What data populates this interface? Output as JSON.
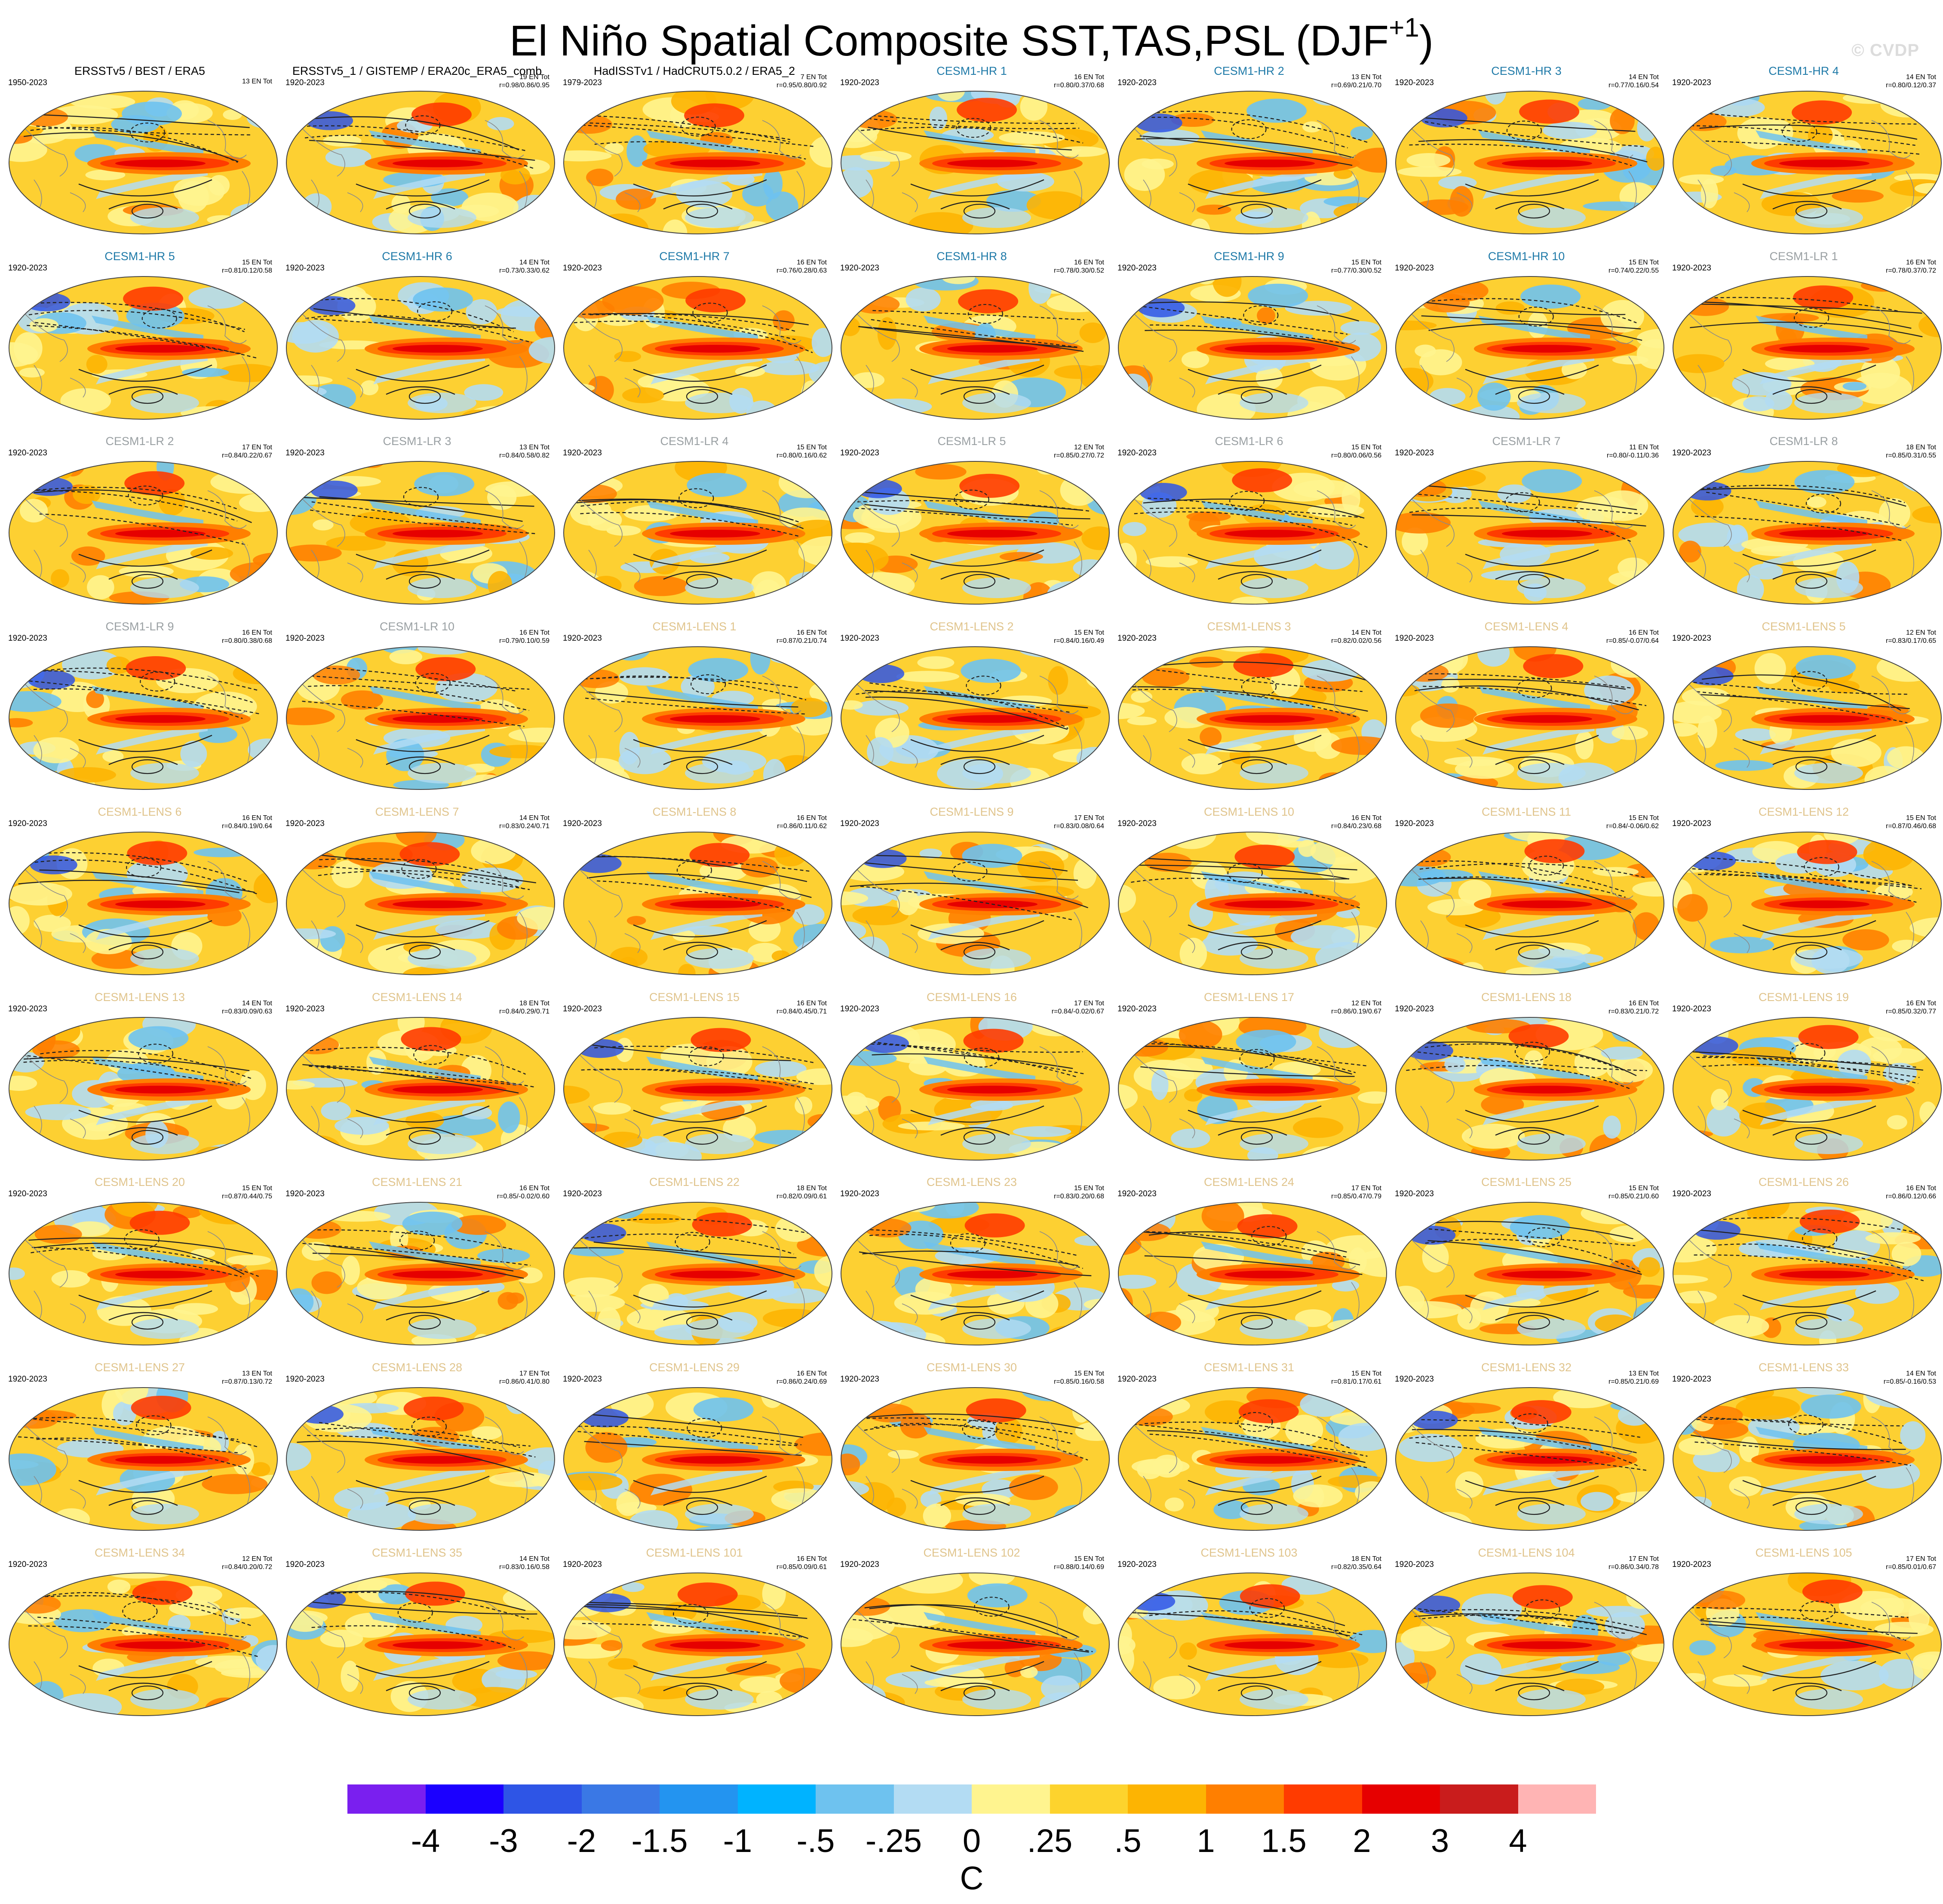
{
  "title": "El Niño Spatial Composite SST,TAS,PSL (DJF",
  "title_superscript": "+1",
  "title_suffix": ")",
  "watermark": "© CVDP",
  "chart_data": {
    "type": "heatmap",
    "title": "El Niño Spatial Composite SST,TAS,PSL (DJF+1)",
    "units": "C",
    "colorbar": {
      "ticks": [
        "-4",
        "-3",
        "-2",
        "-1.5",
        "-1",
        "-.5",
        "-.25",
        "0",
        ".25",
        ".5",
        "1",
        "1.5",
        "2",
        "3",
        "4"
      ],
      "colors": [
        "#7a1fef",
        "#1b00ff",
        "#2e55e6",
        "#3a78e5",
        "#2394f0",
        "#00b3ff",
        "#6ec2ef",
        "#b3dcf3",
        "#fff48f",
        "#fdd32d",
        "#fdb402",
        "#ff7f00",
        "#ff3b00",
        "#e60000",
        "#c91c1c",
        "#ffb4b4"
      ]
    },
    "panels": [
      {
        "title": "ERSSTv5 / BEST / ERA5",
        "years": "1950-2023",
        "en": "13 EN Tot",
        "stat": "",
        "group": "obs"
      },
      {
        "title": "ERSSTv5_1 / GISTEMP / ERA20c_ERA5_comb",
        "years": "1920-2023",
        "en": "19 EN Tot",
        "stat": "r=0.98/0.86/0.95",
        "group": "obs"
      },
      {
        "title": "HadISSTv1 / HadCRUT5.0.2 / ERA5_2",
        "years": "1979-2023",
        "en": "7 EN Tot",
        "stat": "r=0.95/0.80/0.92",
        "group": "obs"
      },
      {
        "title": "CESM1-HR 1",
        "years": "1920-2023",
        "en": "16 EN Tot",
        "stat": "r=0.80/0.37/0.68",
        "group": "hr"
      },
      {
        "title": "CESM1-HR 2",
        "years": "1920-2023",
        "en": "13 EN Tot",
        "stat": "r=0.69/0.21/0.70",
        "group": "hr"
      },
      {
        "title": "CESM1-HR 3",
        "years": "1920-2023",
        "en": "14 EN Tot",
        "stat": "r=0.77/0.16/0.54",
        "group": "hr"
      },
      {
        "title": "CESM1-HR 4",
        "years": "1920-2023",
        "en": "14 EN Tot",
        "stat": "r=0.80/0.12/0.37",
        "group": "hr"
      },
      {
        "title": "CESM1-HR 5",
        "years": "1920-2023",
        "en": "15 EN Tot",
        "stat": "r=0.81/0.12/0.58",
        "group": "hr"
      },
      {
        "title": "CESM1-HR 6",
        "years": "1920-2023",
        "en": "14 EN Tot",
        "stat": "r=0.73/0.33/0.62",
        "group": "hr"
      },
      {
        "title": "CESM1-HR 7",
        "years": "1920-2023",
        "en": "16 EN Tot",
        "stat": "r=0.76/0.28/0.63",
        "group": "hr"
      },
      {
        "title": "CESM1-HR 8",
        "years": "1920-2023",
        "en": "16 EN Tot",
        "stat": "r=0.78/0.30/0.52",
        "group": "hr"
      },
      {
        "title": "CESM1-HR 9",
        "years": "1920-2023",
        "en": "15 EN Tot",
        "stat": "r=0.77/0.30/0.52",
        "group": "hr"
      },
      {
        "title": "CESM1-HR 10",
        "years": "1920-2023",
        "en": "15 EN Tot",
        "stat": "r=0.74/0.22/0.55",
        "group": "hr"
      },
      {
        "title": "CESM1-LR 1",
        "years": "1920-2023",
        "en": "16 EN Tot",
        "stat": "r=0.78/0.37/0.72",
        "group": "lr"
      },
      {
        "title": "CESM1-LR 2",
        "years": "1920-2023",
        "en": "17 EN Tot",
        "stat": "r=0.84/0.22/0.67",
        "group": "lr"
      },
      {
        "title": "CESM1-LR 3",
        "years": "1920-2023",
        "en": "13 EN Tot",
        "stat": "r=0.84/0.58/0.82",
        "group": "lr"
      },
      {
        "title": "CESM1-LR 4",
        "years": "1920-2023",
        "en": "15 EN Tot",
        "stat": "r=0.80/0.16/0.62",
        "group": "lr"
      },
      {
        "title": "CESM1-LR 5",
        "years": "1920-2023",
        "en": "12 EN Tot",
        "stat": "r=0.85/0.27/0.72",
        "group": "lr"
      },
      {
        "title": "CESM1-LR 6",
        "years": "1920-2023",
        "en": "15 EN Tot",
        "stat": "r=0.80/0.06/0.56",
        "group": "lr"
      },
      {
        "title": "CESM1-LR 7",
        "years": "1920-2023",
        "en": "11 EN Tot",
        "stat": "r=0.80/-0.11/0.36",
        "group": "lr"
      },
      {
        "title": "CESM1-LR 8",
        "years": "1920-2023",
        "en": "18 EN Tot",
        "stat": "r=0.85/0.31/0.55",
        "group": "lr"
      },
      {
        "title": "CESM1-LR 9",
        "years": "1920-2023",
        "en": "16 EN Tot",
        "stat": "r=0.80/0.38/0.68",
        "group": "lr"
      },
      {
        "title": "CESM1-LR 10",
        "years": "1920-2023",
        "en": "16 EN Tot",
        "stat": "r=0.79/0.10/0.59",
        "group": "lr"
      },
      {
        "title": "CESM1-LENS 1",
        "years": "1920-2023",
        "en": "16 EN Tot",
        "stat": "r=0.87/0.21/0.74",
        "group": "lens"
      },
      {
        "title": "CESM1-LENS 2",
        "years": "1920-2023",
        "en": "15 EN Tot",
        "stat": "r=0.84/0.16/0.49",
        "group": "lens"
      },
      {
        "title": "CESM1-LENS 3",
        "years": "1920-2023",
        "en": "14 EN Tot",
        "stat": "r=0.82/0.02/0.56",
        "group": "lens"
      },
      {
        "title": "CESM1-LENS 4",
        "years": "1920-2023",
        "en": "16 EN Tot",
        "stat": "r=0.85/-0.07/0.64",
        "group": "lens"
      },
      {
        "title": "CESM1-LENS 5",
        "years": "1920-2023",
        "en": "12 EN Tot",
        "stat": "r=0.83/0.17/0.65",
        "group": "lens"
      },
      {
        "title": "CESM1-LENS 6",
        "years": "1920-2023",
        "en": "16 EN Tot",
        "stat": "r=0.84/0.19/0.64",
        "group": "lens"
      },
      {
        "title": "CESM1-LENS 7",
        "years": "1920-2023",
        "en": "14 EN Tot",
        "stat": "r=0.83/0.24/0.71",
        "group": "lens"
      },
      {
        "title": "CESM1-LENS 8",
        "years": "1920-2023",
        "en": "16 EN Tot",
        "stat": "r=0.86/0.11/0.62",
        "group": "lens"
      },
      {
        "title": "CESM1-LENS 9",
        "years": "1920-2023",
        "en": "17 EN Tot",
        "stat": "r=0.83/0.08/0.64",
        "group": "lens"
      },
      {
        "title": "CESM1-LENS 10",
        "years": "1920-2023",
        "en": "16 EN Tot",
        "stat": "r=0.84/0.23/0.68",
        "group": "lens"
      },
      {
        "title": "CESM1-LENS 11",
        "years": "1920-2023",
        "en": "15 EN Tot",
        "stat": "r=0.84/-0.06/0.62",
        "group": "lens"
      },
      {
        "title": "CESM1-LENS 12",
        "years": "1920-2023",
        "en": "15 EN Tot",
        "stat": "r=0.87/0.46/0.68",
        "group": "lens"
      },
      {
        "title": "CESM1-LENS 13",
        "years": "1920-2023",
        "en": "14 EN Tot",
        "stat": "r=0.83/0.09/0.63",
        "group": "lens"
      },
      {
        "title": "CESM1-LENS 14",
        "years": "1920-2023",
        "en": "18 EN Tot",
        "stat": "r=0.84/0.29/0.71",
        "group": "lens"
      },
      {
        "title": "CESM1-LENS 15",
        "years": "1920-2023",
        "en": "16 EN Tot",
        "stat": "r=0.84/0.45/0.71",
        "group": "lens"
      },
      {
        "title": "CESM1-LENS 16",
        "years": "1920-2023",
        "en": "17 EN Tot",
        "stat": "r=0.84/-0.02/0.67",
        "group": "lens"
      },
      {
        "title": "CESM1-LENS 17",
        "years": "1920-2023",
        "en": "12 EN Tot",
        "stat": "r=0.86/0.19/0.67",
        "group": "lens"
      },
      {
        "title": "CESM1-LENS 18",
        "years": "1920-2023",
        "en": "16 EN Tot",
        "stat": "r=0.83/0.21/0.72",
        "group": "lens"
      },
      {
        "title": "CESM1-LENS 19",
        "years": "1920-2023",
        "en": "16 EN Tot",
        "stat": "r=0.85/0.32/0.77",
        "group": "lens"
      },
      {
        "title": "CESM1-LENS 20",
        "years": "1920-2023",
        "en": "15 EN Tot",
        "stat": "r=0.87/0.44/0.75",
        "group": "lens"
      },
      {
        "title": "CESM1-LENS 21",
        "years": "1920-2023",
        "en": "16 EN Tot",
        "stat": "r=0.85/-0.02/0.60",
        "group": "lens"
      },
      {
        "title": "CESM1-LENS 22",
        "years": "1920-2023",
        "en": "18 EN Tot",
        "stat": "r=0.82/0.09/0.61",
        "group": "lens"
      },
      {
        "title": "CESM1-LENS 23",
        "years": "1920-2023",
        "en": "15 EN Tot",
        "stat": "r=0.83/0.20/0.68",
        "group": "lens"
      },
      {
        "title": "CESM1-LENS 24",
        "years": "1920-2023",
        "en": "17 EN Tot",
        "stat": "r=0.85/0.47/0.79",
        "group": "lens"
      },
      {
        "title": "CESM1-LENS 25",
        "years": "1920-2023",
        "en": "15 EN Tot",
        "stat": "r=0.85/0.21/0.60",
        "group": "lens"
      },
      {
        "title": "CESM1-LENS 26",
        "years": "1920-2023",
        "en": "16 EN Tot",
        "stat": "r=0.86/0.12/0.66",
        "group": "lens"
      },
      {
        "title": "CESM1-LENS 27",
        "years": "1920-2023",
        "en": "13 EN Tot",
        "stat": "r=0.87/0.13/0.72",
        "group": "lens"
      },
      {
        "title": "CESM1-LENS 28",
        "years": "1920-2023",
        "en": "17 EN Tot",
        "stat": "r=0.86/0.41/0.80",
        "group": "lens"
      },
      {
        "title": "CESM1-LENS 29",
        "years": "1920-2023",
        "en": "16 EN Tot",
        "stat": "r=0.86/0.24/0.69",
        "group": "lens"
      },
      {
        "title": "CESM1-LENS 30",
        "years": "1920-2023",
        "en": "15 EN Tot",
        "stat": "r=0.85/0.16/0.58",
        "group": "lens"
      },
      {
        "title": "CESM1-LENS 31",
        "years": "1920-2023",
        "en": "15 EN Tot",
        "stat": "r=0.81/0.17/0.61",
        "group": "lens"
      },
      {
        "title": "CESM1-LENS 32",
        "years": "1920-2023",
        "en": "13 EN Tot",
        "stat": "r=0.85/0.21/0.69",
        "group": "lens"
      },
      {
        "title": "CESM1-LENS 33",
        "years": "1920-2023",
        "en": "14 EN Tot",
        "stat": "r=0.85/-0.16/0.53",
        "group": "lens"
      },
      {
        "title": "CESM1-LENS 34",
        "years": "1920-2023",
        "en": "12 EN Tot",
        "stat": "r=0.84/0.20/0.72",
        "group": "lens"
      },
      {
        "title": "CESM1-LENS 35",
        "years": "1920-2023",
        "en": "14 EN Tot",
        "stat": "r=0.83/0.16/0.58",
        "group": "lens"
      },
      {
        "title": "CESM1-LENS 101",
        "years": "1920-2023",
        "en": "16 EN Tot",
        "stat": "r=0.85/0.09/0.61",
        "group": "lens"
      },
      {
        "title": "CESM1-LENS 102",
        "years": "1920-2023",
        "en": "15 EN Tot",
        "stat": "r=0.88/0.14/0.69",
        "group": "lens"
      },
      {
        "title": "CESM1-LENS 103",
        "years": "1920-2023",
        "en": "18 EN Tot",
        "stat": "r=0.82/0.35/0.64",
        "group": "lens"
      },
      {
        "title": "CESM1-LENS 104",
        "years": "1920-2023",
        "en": "17 EN Tot",
        "stat": "r=0.86/0.34/0.78",
        "group": "lens"
      },
      {
        "title": "CESM1-LENS 105",
        "years": "1920-2023",
        "en": "17 EN Tot",
        "stat": "r=0.85/0.01/0.67",
        "group": "lens"
      }
    ]
  }
}
